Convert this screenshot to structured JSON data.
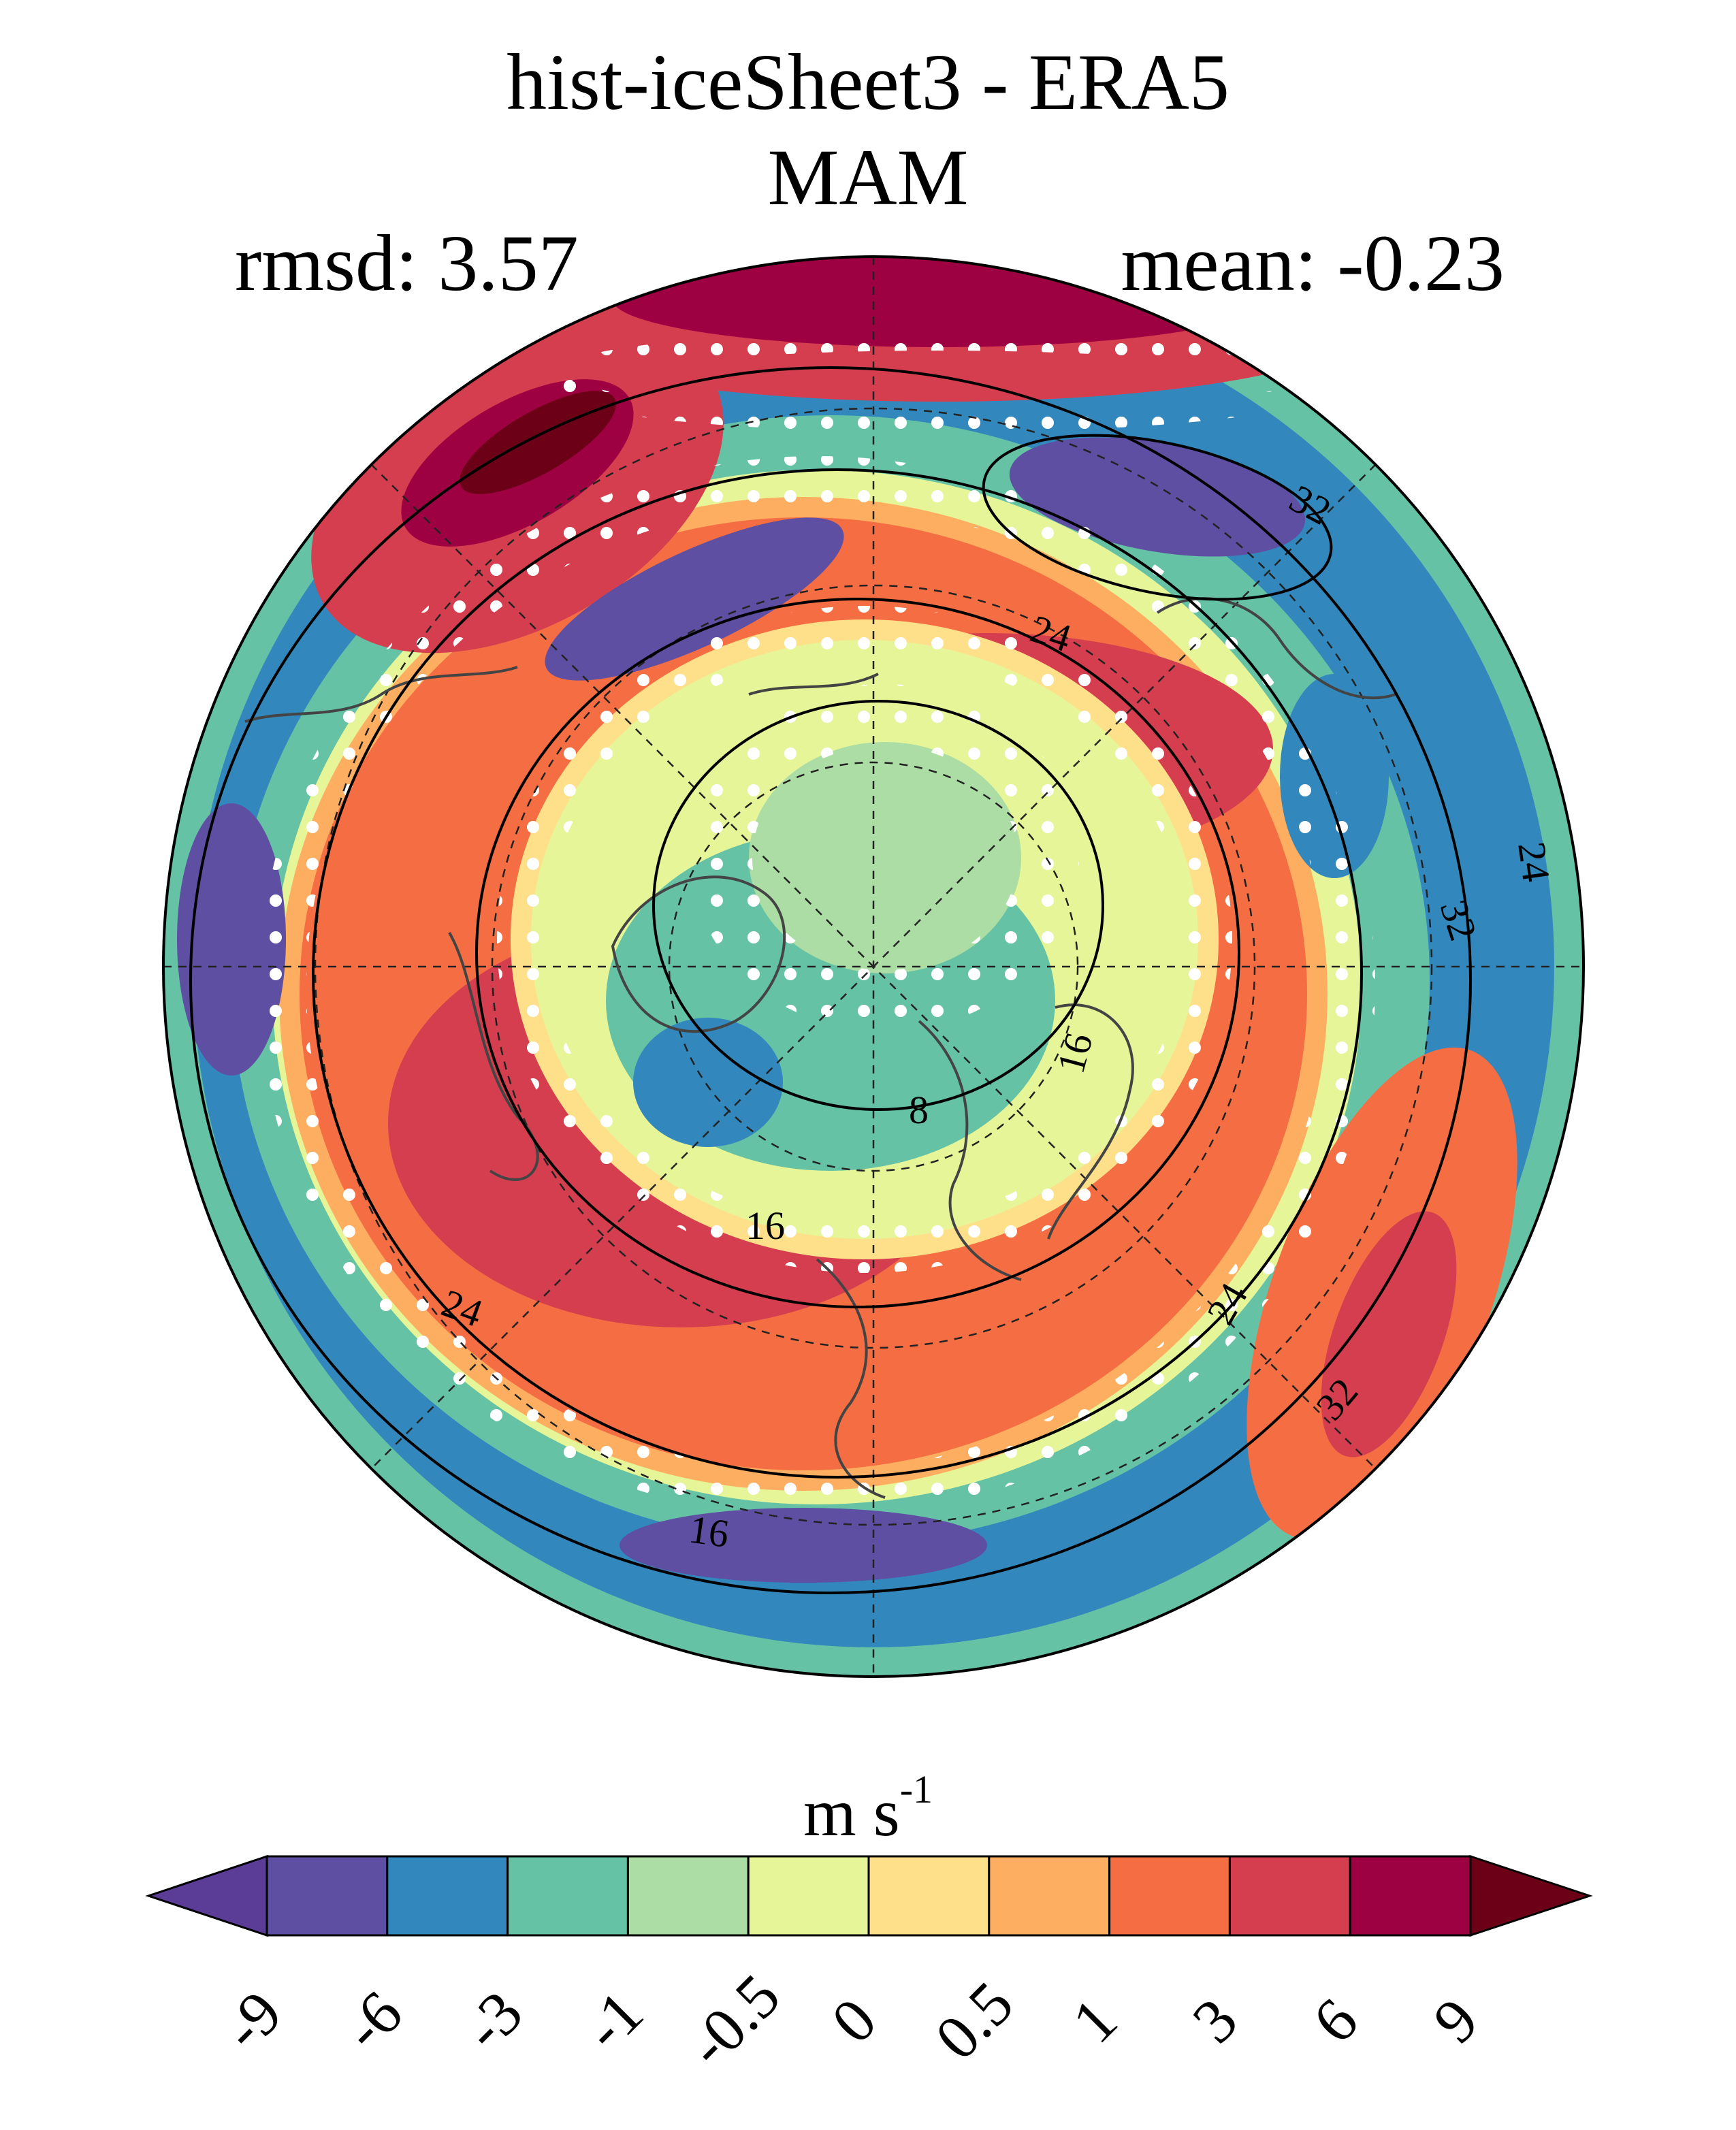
{
  "title": "hist-iceSheet3 - ERA5",
  "season": "MAM",
  "stats": {
    "rmsd_label": "rmsd: 3.57",
    "mean_label": "mean: -0.23"
  },
  "colorbar": {
    "units_base": "m s",
    "units_exp": "-1",
    "tick_labels": [
      "-9",
      "-6",
      "-3",
      "-1",
      "-0.5",
      "0",
      "0.5",
      "1",
      "3",
      "6",
      "9"
    ],
    "colors": [
      "#5b3c96",
      "#5e4fa2",
      "#3288bd",
      "#66c2a5",
      "#abdda4",
      "#e6f598",
      "#fee08b",
      "#fdae61",
      "#f46d43",
      "#d53e4f",
      "#9e0142",
      "#6b0016"
    ]
  },
  "contour_labels": [
    "32",
    "24",
    "16",
    "8",
    "16",
    "24",
    "24",
    "32",
    "32",
    "24",
    "16"
  ]
}
